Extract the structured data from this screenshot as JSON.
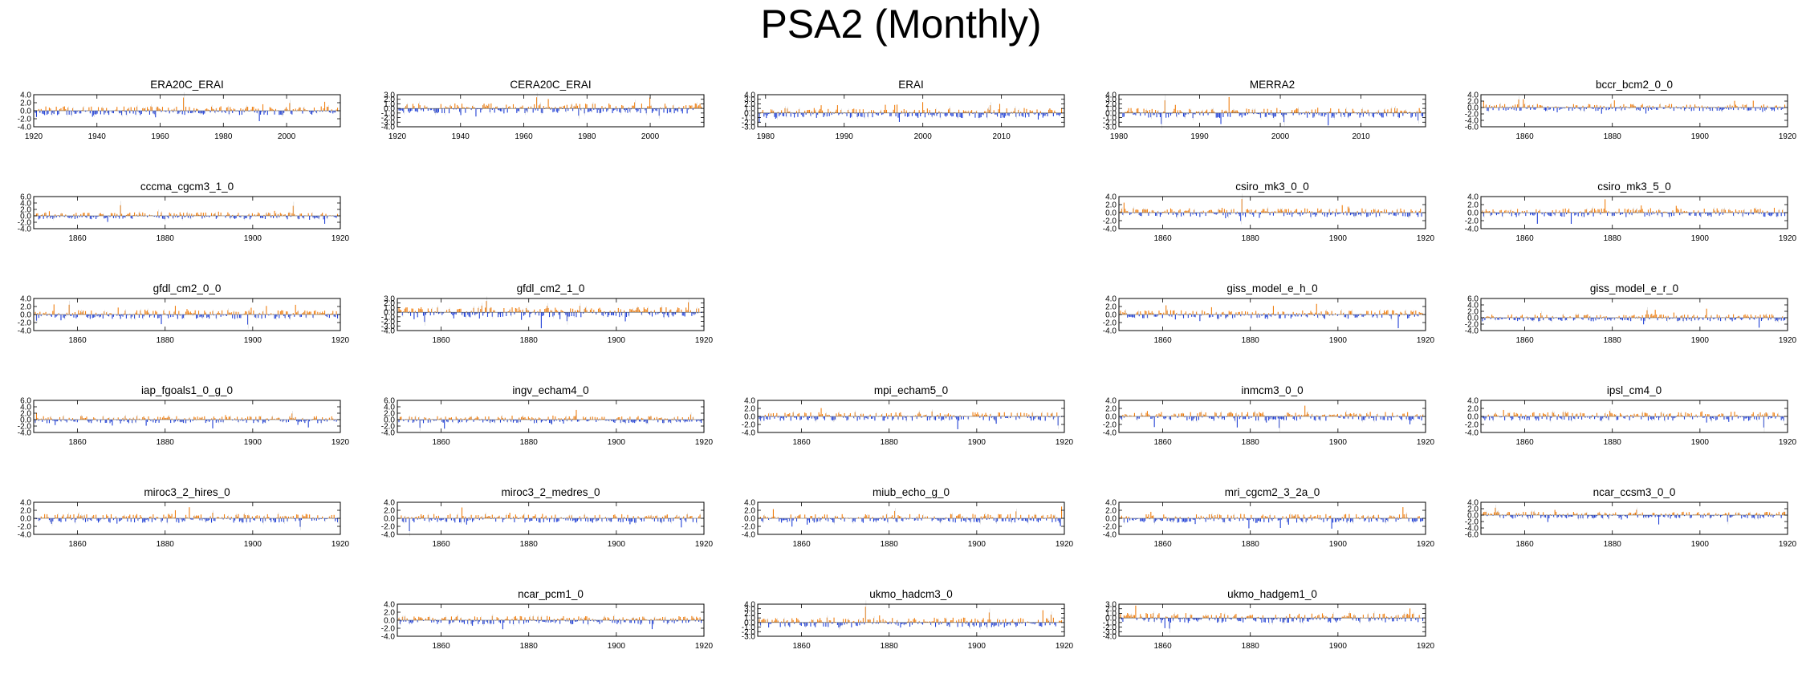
{
  "page": {
    "title": "PSA2 (Monthly)"
  },
  "colors": {
    "positive": "#f07f10",
    "negative": "#1f3fd6",
    "light": "#cccccc",
    "frame": "#000000"
  },
  "chart_data": [
    {
      "type": "bar",
      "title": "ERA20C_ERAI",
      "xlim": [
        1920,
        2017
      ],
      "xticks": [
        1920,
        1940,
        1960,
        1980,
        2000
      ],
      "yticks": [
        4.0,
        2.0,
        0.0,
        -2.0,
        -4.0
      ],
      "ylim": [
        -4,
        4
      ]
    },
    {
      "type": "bar",
      "title": "CERA20C_ERAI",
      "xlim": [
        1920,
        2017
      ],
      "xticks": [
        1920,
        1940,
        1960,
        1980,
        2000
      ],
      "yticks": [
        3.0,
        2.0,
        1.0,
        0.0,
        -1.0,
        -2.0,
        -3.0,
        -4.0
      ],
      "ylim": [
        -4,
        3
      ]
    },
    {
      "type": "bar",
      "title": "ERAI",
      "xlim": [
        1979,
        2018
      ],
      "xticks": [
        1980,
        1990,
        2000,
        2010
      ],
      "yticks": [
        4.0,
        3.0,
        2.0,
        1.0,
        0.0,
        -1.0,
        -2.0,
        -3.0
      ],
      "ylim": [
        -3,
        4
      ]
    },
    {
      "type": "bar",
      "title": "MERRA2",
      "xlim": [
        1980,
        2018
      ],
      "xticks": [
        1980,
        1990,
        2000,
        2010
      ],
      "yticks": [
        4.0,
        3.0,
        2.0,
        1.0,
        0.0,
        -1.0,
        -2.0,
        -3.0
      ],
      "ylim": [
        -3,
        4
      ]
    },
    {
      "type": "bar",
      "title": "bccr_bcm2_0_0",
      "xlim": [
        1850,
        1920
      ],
      "xticks": [
        1860,
        1880,
        1900,
        1920
      ],
      "yticks": [
        4.0,
        2.0,
        0.0,
        -2.0,
        -4.0,
        -6.0
      ],
      "ylim": [
        -6,
        4
      ]
    },
    {
      "type": "bar",
      "title": "cccma_cgcm3_1_0",
      "xlim": [
        1850,
        1920
      ],
      "xticks": [
        1860,
        1880,
        1900,
        1920
      ],
      "yticks": [
        6.0,
        4.0,
        2.0,
        0.0,
        -2.0,
        -4.0
      ],
      "ylim": [
        -4,
        6
      ]
    },
    {
      "type": "bar",
      "title": "csiro_mk3_0_0",
      "xlim": [
        1850,
        1920
      ],
      "xticks": [
        1860,
        1880,
        1900,
        1920
      ],
      "yticks": [
        4.0,
        2.0,
        0.0,
        -2.0,
        -4.0
      ],
      "ylim": [
        -4,
        4
      ]
    },
    {
      "type": "bar",
      "title": "csiro_mk3_5_0",
      "xlim": [
        1850,
        1920
      ],
      "xticks": [
        1860,
        1880,
        1900,
        1920
      ],
      "yticks": [
        4.0,
        2.0,
        0.0,
        -2.0,
        -4.0
      ],
      "ylim": [
        -4,
        4
      ]
    },
    {
      "type": "bar",
      "title": "gfdl_cm2_0_0",
      "xlim": [
        1850,
        1920
      ],
      "xticks": [
        1860,
        1880,
        1900,
        1920
      ],
      "yticks": [
        4.0,
        2.0,
        0.0,
        -2.0,
        -4.0
      ],
      "ylim": [
        -4,
        4
      ]
    },
    {
      "type": "bar",
      "title": "gfdl_cm2_1_0",
      "xlim": [
        1850,
        1920
      ],
      "xticks": [
        1860,
        1880,
        1900,
        1920
      ],
      "yticks": [
        3.0,
        2.0,
        1.0,
        0.0,
        -1.0,
        -2.0,
        -3.0,
        -4.0
      ],
      "ylim": [
        -4,
        3
      ]
    },
    {
      "type": "bar",
      "title": "giss_model_e_h_0",
      "xlim": [
        1850,
        1920
      ],
      "xticks": [
        1860,
        1880,
        1900,
        1920
      ],
      "yticks": [
        4.0,
        2.0,
        0.0,
        -2.0,
        -4.0
      ],
      "ylim": [
        -4,
        4
      ]
    },
    {
      "type": "bar",
      "title": "giss_model_e_r_0",
      "xlim": [
        1850,
        1920
      ],
      "xticks": [
        1860,
        1880,
        1900,
        1920
      ],
      "yticks": [
        6.0,
        4.0,
        2.0,
        0.0,
        -2.0,
        -4.0
      ],
      "ylim": [
        -4,
        6
      ]
    },
    {
      "type": "bar",
      "title": "iap_fgoals1_0_g_0",
      "xlim": [
        1850,
        1920
      ],
      "xticks": [
        1860,
        1880,
        1900,
        1920
      ],
      "yticks": [
        6.0,
        4.0,
        2.0,
        0.0,
        -2.0,
        -4.0
      ],
      "ylim": [
        -4,
        6
      ]
    },
    {
      "type": "bar",
      "title": "ingv_echam4_0",
      "xlim": [
        1850,
        1920
      ],
      "xticks": [
        1860,
        1880,
        1900,
        1920
      ],
      "yticks": [
        6.0,
        4.0,
        2.0,
        0.0,
        -2.0,
        -4.0
      ],
      "ylim": [
        -4,
        6
      ]
    },
    {
      "type": "bar",
      "title": "mpi_echam5_0",
      "xlim": [
        1850,
        1920
      ],
      "xticks": [
        1860,
        1880,
        1900,
        1920
      ],
      "yticks": [
        4.0,
        2.0,
        0.0,
        -2.0,
        -4.0
      ],
      "ylim": [
        -4,
        4
      ]
    },
    {
      "type": "bar",
      "title": "inmcm3_0_0",
      "xlim": [
        1850,
        1920
      ],
      "xticks": [
        1860,
        1880,
        1900,
        1920
      ],
      "yticks": [
        4.0,
        2.0,
        0.0,
        -2.0,
        -4.0
      ],
      "ylim": [
        -4,
        4
      ]
    },
    {
      "type": "bar",
      "title": "ipsl_cm4_0",
      "xlim": [
        1850,
        1920
      ],
      "xticks": [
        1860,
        1880,
        1900,
        1920
      ],
      "yticks": [
        4.0,
        2.0,
        0.0,
        -2.0,
        -4.0
      ],
      "ylim": [
        -4,
        4
      ]
    },
    {
      "type": "bar",
      "title": "miroc3_2_hires_0",
      "xlim": [
        1850,
        1920
      ],
      "xticks": [
        1860,
        1880,
        1900,
        1920
      ],
      "yticks": [
        4.0,
        2.0,
        0.0,
        -2.0,
        -4.0
      ],
      "ylim": [
        -4,
        4
      ]
    },
    {
      "type": "bar",
      "title": "miroc3_2_medres_0",
      "xlim": [
        1850,
        1920
      ],
      "xticks": [
        1860,
        1880,
        1900,
        1920
      ],
      "yticks": [
        4.0,
        2.0,
        0.0,
        -2.0,
        -4.0
      ],
      "ylim": [
        -4,
        4
      ]
    },
    {
      "type": "bar",
      "title": "miub_echo_g_0",
      "xlim": [
        1850,
        1920
      ],
      "xticks": [
        1860,
        1880,
        1900,
        1920
      ],
      "yticks": [
        4.0,
        2.0,
        0.0,
        -2.0,
        -4.0
      ],
      "ylim": [
        -4,
        4
      ]
    },
    {
      "type": "bar",
      "title": "mri_cgcm2_3_2a_0",
      "xlim": [
        1850,
        1920
      ],
      "xticks": [
        1860,
        1880,
        1900,
        1920
      ],
      "yticks": [
        4.0,
        2.0,
        0.0,
        -2.0,
        -4.0
      ],
      "ylim": [
        -4,
        4
      ]
    },
    {
      "type": "bar",
      "title": "ncar_ccsm3_0_0",
      "xlim": [
        1850,
        1920
      ],
      "xticks": [
        1860,
        1880,
        1900,
        1920
      ],
      "yticks": [
        4.0,
        2.0,
        0.0,
        -2.0,
        -4.0,
        -6.0
      ],
      "ylim": [
        -6,
        4
      ]
    },
    {
      "type": "bar",
      "title": "ncar_pcm1_0",
      "xlim": [
        1850,
        1920
      ],
      "xticks": [
        1860,
        1880,
        1900,
        1920
      ],
      "yticks": [
        4.0,
        2.0,
        0.0,
        -2.0,
        -4.0
      ],
      "ylim": [
        -4,
        4
      ]
    },
    {
      "type": "bar",
      "title": "ukmo_hadcm3_0",
      "xlim": [
        1850,
        1920
      ],
      "xticks": [
        1860,
        1880,
        1900,
        1920
      ],
      "yticks": [
        4.0,
        3.0,
        2.0,
        1.0,
        0.0,
        -1.0,
        -2.0,
        -3.0
      ],
      "ylim": [
        -3,
        4
      ]
    },
    {
      "type": "bar",
      "title": "ukmo_hadgem1_0",
      "xlim": [
        1850,
        1920
      ],
      "xticks": [
        1860,
        1880,
        1900,
        1920
      ],
      "yticks": [
        3.0,
        2.0,
        1.0,
        0.0,
        -1.0,
        -2.0,
        -3.0,
        -4.0
      ],
      "ylim": [
        -4,
        3
      ]
    }
  ]
}
